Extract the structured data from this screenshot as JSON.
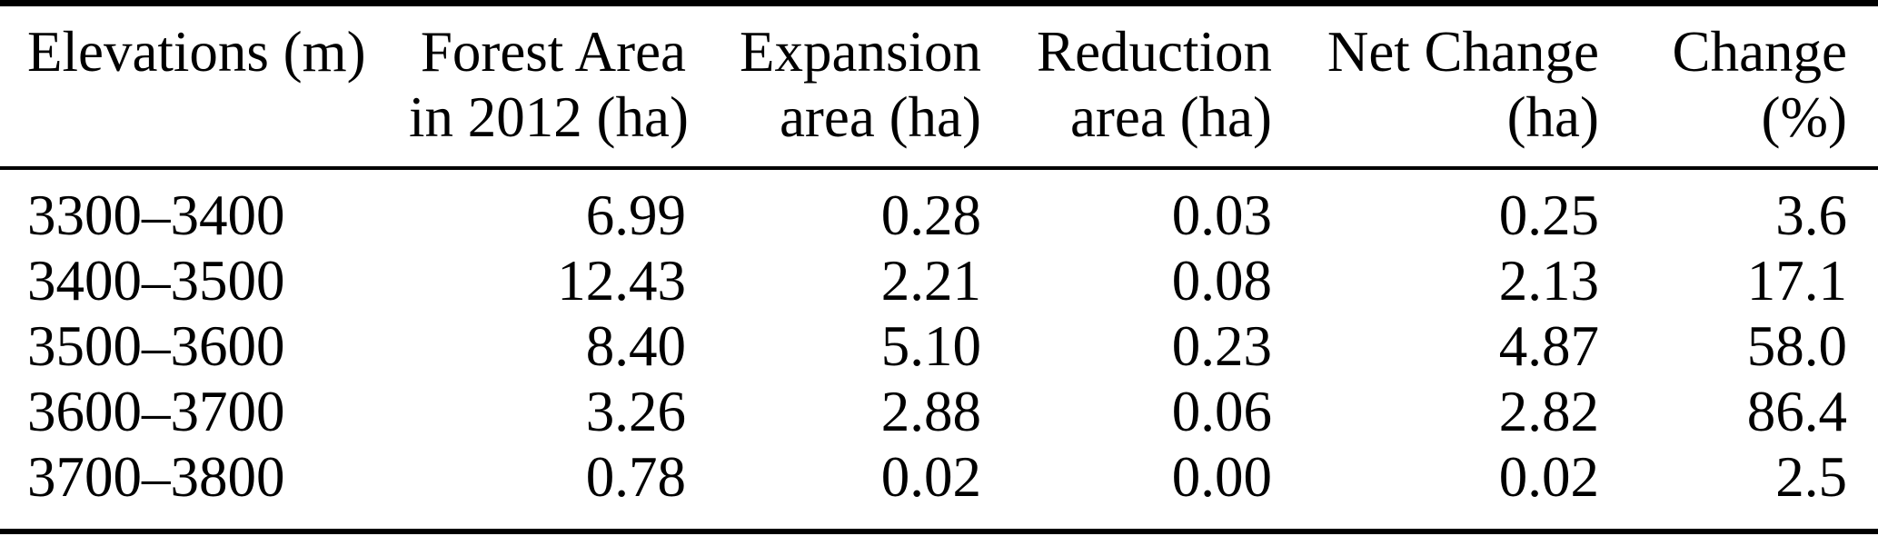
{
  "table": {
    "description": "Forest area change by elevation band between 2012 baseline, in hectares and percent",
    "columns": [
      {
        "line1": "Elevations (m)",
        "line2": ""
      },
      {
        "line1": "Forest Area",
        "line2": "in 2012 (ha)"
      },
      {
        "line1": "Expansion",
        "line2": "area (ha)"
      },
      {
        "line1": "Reduction",
        "line2": "area (ha)"
      },
      {
        "line1": "Net Change",
        "line2": "(ha)"
      },
      {
        "line1": "Change",
        "line2": "(%)"
      }
    ],
    "rows": [
      [
        "3300–3400",
        "6.99",
        "0.28",
        "0.03",
        "0.25",
        "3.6"
      ],
      [
        "3400–3500",
        "12.43",
        "2.21",
        "0.08",
        "2.13",
        "17.1"
      ],
      [
        "3500–3600",
        "8.40",
        "5.10",
        "0.23",
        "4.87",
        "58.0"
      ],
      [
        "3600–3700",
        "3.26",
        "2.88",
        "0.06",
        "2.82",
        "86.4"
      ],
      [
        "3700–3800",
        "0.78",
        "0.02",
        "0.00",
        "0.02",
        "2.5"
      ]
    ],
    "colors": {
      "text": "#000000",
      "background": "#ffffff",
      "rule": "#000000"
    }
  }
}
